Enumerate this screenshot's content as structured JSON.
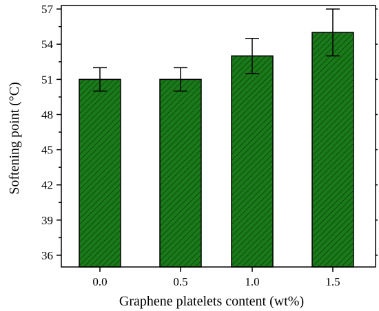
{
  "chart_data": {
    "type": "bar",
    "title": "",
    "xlabel": "Graphene platelets content (wt%)",
    "ylabel": "Softening point (°C)",
    "categories": [
      "0.0",
      "0.5",
      "1.0",
      "1.5"
    ],
    "values": [
      51,
      51,
      53,
      55
    ],
    "error": [
      1,
      1,
      1.5,
      2
    ],
    "ylim": [
      35,
      57.3
    ],
    "yticks": [
      36,
      39,
      42,
      45,
      48,
      51,
      54,
      57
    ],
    "ytick_labels": [
      "36",
      "39",
      "42",
      "45",
      "48",
      "51",
      "54",
      "57"
    ],
    "grid": false,
    "legend": "none",
    "bar_color": "#1a7a1a",
    "hatch_color": "#0a3d0a"
  }
}
